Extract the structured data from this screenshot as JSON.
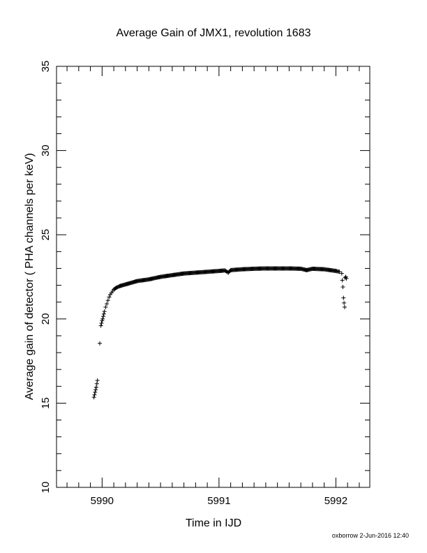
{
  "chart_data": {
    "type": "scatter",
    "title": "Average Gain of JMX1, revolution 1683",
    "xlabel": "Time in IJD",
    "ylabel": "Average gain of detector ( PHA channels per keV)",
    "xlim": [
      5989.61,
      5992.29
    ],
    "ylim": [
      10,
      35
    ],
    "x_ticks": [
      "5990",
      "5991",
      "5992"
    ],
    "y_ticks": [
      "10",
      "15",
      "20",
      "25",
      "30",
      "35"
    ],
    "marker": "+",
    "grid": false,
    "series": [
      {
        "x": [
          5989.93,
          5989.935,
          5989.94,
          5989.945,
          5989.95,
          5989.955,
          5989.96,
          5989.98,
          5989.99,
          5989.995,
          5990.0,
          5990.005,
          5990.01,
          5990.015,
          5990.02,
          5990.03,
          5990.04,
          5990.05,
          5990.06,
          5990.07,
          5990.08,
          5990.09,
          5990.1,
          5990.12,
          5990.15,
          5990.2,
          5990.25,
          5990.3,
          5990.35,
          5990.4,
          5990.5,
          5990.6,
          5990.7,
          5990.8,
          5990.9,
          5991.0,
          5991.05,
          5991.08,
          5991.1,
          5991.2,
          5991.3,
          5991.4,
          5991.5,
          5991.6,
          5991.7,
          5991.75,
          5991.8,
          5991.9,
          5992.0,
          5992.03,
          5992.05,
          5992.055,
          5992.06,
          5992.065,
          5992.07,
          5992.075,
          5992.08,
          5992.085,
          5992.09
        ],
        "y": [
          15.35,
          15.5,
          15.65,
          15.8,
          15.95,
          16.15,
          16.35,
          18.55,
          19.6,
          19.75,
          19.9,
          20.0,
          20.15,
          20.3,
          20.45,
          20.7,
          20.9,
          21.1,
          21.3,
          21.45,
          21.55,
          21.65,
          21.75,
          21.85,
          21.95,
          22.05,
          22.15,
          22.25,
          22.3,
          22.35,
          22.5,
          22.6,
          22.7,
          22.75,
          22.8,
          22.85,
          22.88,
          22.75,
          22.9,
          22.95,
          22.98,
          23.0,
          23.0,
          23.0,
          22.98,
          22.9,
          22.98,
          22.95,
          22.85,
          22.8,
          22.7,
          22.3,
          21.9,
          21.25,
          20.95,
          20.7,
          22.45,
          22.5,
          22.4
        ]
      }
    ]
  },
  "footer": {
    "stamp": "oxborrow  2-Jun-2016 12:40"
  }
}
